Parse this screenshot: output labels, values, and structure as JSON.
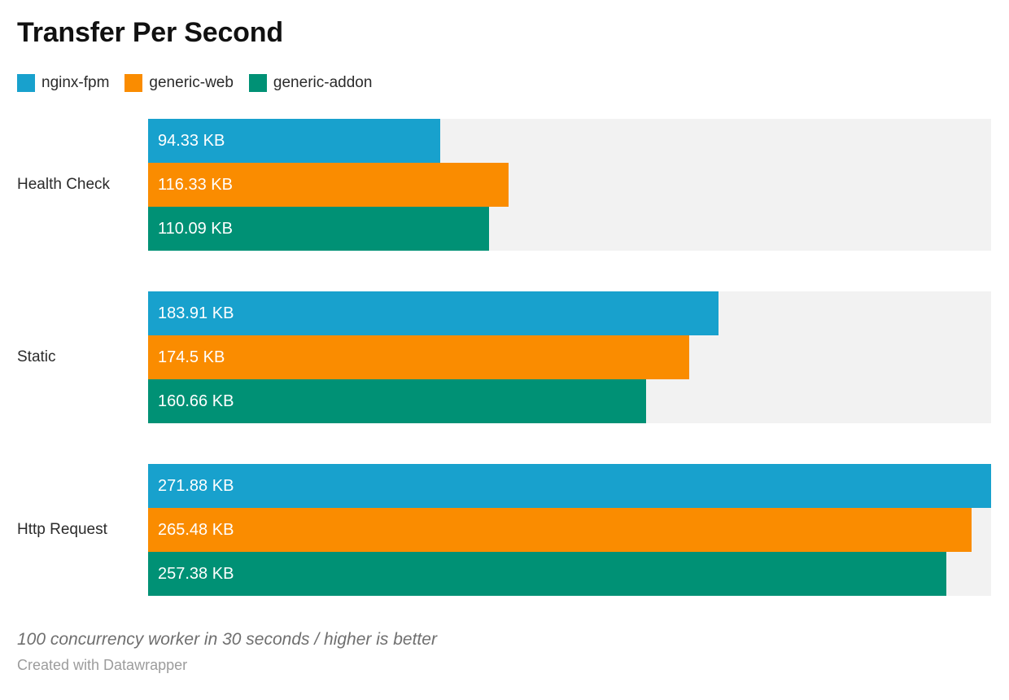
{
  "title": "Transfer Per Second",
  "legend": {
    "items": [
      {
        "label": "nginx-fpm",
        "color": "#18a1cd"
      },
      {
        "label": "generic-web",
        "color": "#fa8c00"
      },
      {
        "label": "generic-addon",
        "color": "#009175"
      }
    ]
  },
  "chart_data": {
    "type": "bar",
    "orientation": "horizontal",
    "title": "Transfer Per Second",
    "unit": "KB",
    "categories": [
      "Health Check",
      "Static",
      "Http Request"
    ],
    "series": [
      {
        "name": "nginx-fpm",
        "color": "#18a1cd",
        "values": [
          94.33,
          183.91,
          271.88
        ],
        "value_labels": [
          "94.33 KB",
          "183.91 KB",
          "271.88 KB"
        ]
      },
      {
        "name": "generic-web",
        "color": "#fa8c00",
        "values": [
          116.33,
          174.5,
          265.48
        ],
        "value_labels": [
          "116.33 KB",
          "174.5 KB",
          "265.48 KB"
        ]
      },
      {
        "name": "generic-addon",
        "color": "#009175",
        "values": [
          110.09,
          160.66,
          257.38
        ],
        "value_labels": [
          "110.09 KB",
          "160.66 KB",
          "257.38 KB"
        ]
      }
    ],
    "xlim": [
      0,
      271.88
    ],
    "grid": false,
    "legend_position": "top",
    "value_labels_inside_bars": true,
    "track_color": "#f2f2f2"
  },
  "footer": {
    "note": "100 concurrency worker in 30 seconds / higher is better",
    "attribution": "Created with Datawrapper"
  }
}
